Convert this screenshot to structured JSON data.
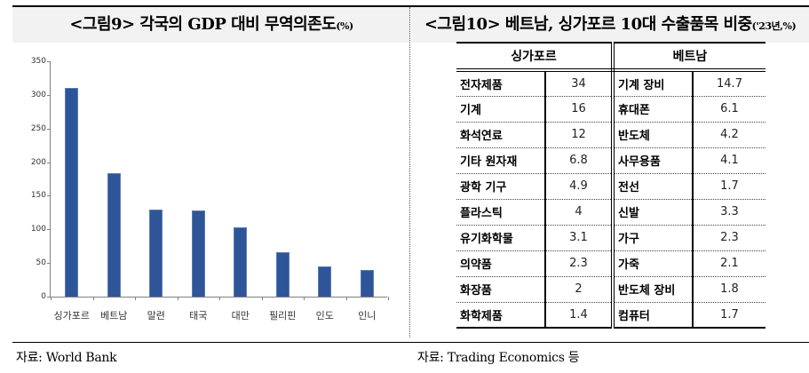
{
  "left_panel": {
    "title": "<그림9> 각국의 GDP 대비 무역의존도",
    "title_unit": "(%)",
    "source": "자료: World Bank"
  },
  "right_panel": {
    "title": "<그림10> 베트남, 싱가포르 10대 수출품목 비중",
    "title_unit": "('23년,%)",
    "source": "자료: Trading Economics 등",
    "table": {
      "headers": [
        "싱가포르",
        "베트남"
      ],
      "rows": [
        {
          "sg_item": "전자제품",
          "sg_val": "34",
          "vn_item": "기계 장비",
          "vn_val": "14.7"
        },
        {
          "sg_item": "기계",
          "sg_val": "16",
          "vn_item": "휴대폰",
          "vn_val": "6.1"
        },
        {
          "sg_item": "화석연료",
          "sg_val": "12",
          "vn_item": "반도체",
          "vn_val": "4.2"
        },
        {
          "sg_item": "기타 원자재",
          "sg_val": "6.8",
          "vn_item": "사무용품",
          "vn_val": "4.1"
        },
        {
          "sg_item": "광학 기구",
          "sg_val": "4.9",
          "vn_item": "전선",
          "vn_val": "1.7"
        },
        {
          "sg_item": "플라스틱",
          "sg_val": "4",
          "vn_item": "신발",
          "vn_val": "3.3"
        },
        {
          "sg_item": "유기화학물",
          "sg_val": "3.1",
          "vn_item": "가구",
          "vn_val": "2.3"
        },
        {
          "sg_item": "의약품",
          "sg_val": "2.3",
          "vn_item": "가죽",
          "vn_val": "2.1"
        },
        {
          "sg_item": "화장품",
          "sg_val": "2",
          "vn_item": "반도체 장비",
          "vn_val": "1.8"
        },
        {
          "sg_item": "화학제품",
          "sg_val": "1.4",
          "vn_item": "컴퓨터",
          "vn_val": "1.7"
        }
      ]
    }
  },
  "colors": {
    "bar": "#2e5597",
    "title_band": "#f2f2f2"
  },
  "chart_data": [
    {
      "type": "bar",
      "title": "<그림9> 각국의 GDP 대비 무역의존도(%)",
      "xlabel": "",
      "ylabel": "",
      "categories": [
        "싱가포르",
        "베트남",
        "말련",
        "태국",
        "대만",
        "필리핀",
        "인도",
        "인니"
      ],
      "values": [
        310,
        183,
        130,
        128,
        103,
        66,
        45,
        40
      ],
      "ylim": [
        0,
        350
      ],
      "yticks": [
        0,
        50,
        100,
        150,
        200,
        250,
        300,
        350
      ],
      "grid": false,
      "legend": null
    },
    {
      "type": "table",
      "title": "<그림10> 베트남, 싱가포르 10대 수출품목 비중('23년,%)",
      "columns": [
        "싱가포르 품목",
        "싱가포르 비중",
        "베트남 품목",
        "베트남 비중"
      ],
      "rows": [
        [
          "전자제품",
          34,
          "기계 장비",
          14.7
        ],
        [
          "기계",
          16,
          "휴대폰",
          6.1
        ],
        [
          "화석연료",
          12,
          "반도체",
          4.2
        ],
        [
          "기타 원자재",
          6.8,
          "사무용품",
          4.1
        ],
        [
          "광학 기구",
          4.9,
          "전선",
          1.7
        ],
        [
          "플라스틱",
          4,
          "신발",
          3.3
        ],
        [
          "유기화학물",
          3.1,
          "가구",
          2.3
        ],
        [
          "의약품",
          2.3,
          "가죽",
          2.1
        ],
        [
          "화장품",
          2,
          "반도체 장비",
          1.8
        ],
        [
          "화학제품",
          1.4,
          "컴퓨터",
          1.7
        ]
      ]
    }
  ]
}
